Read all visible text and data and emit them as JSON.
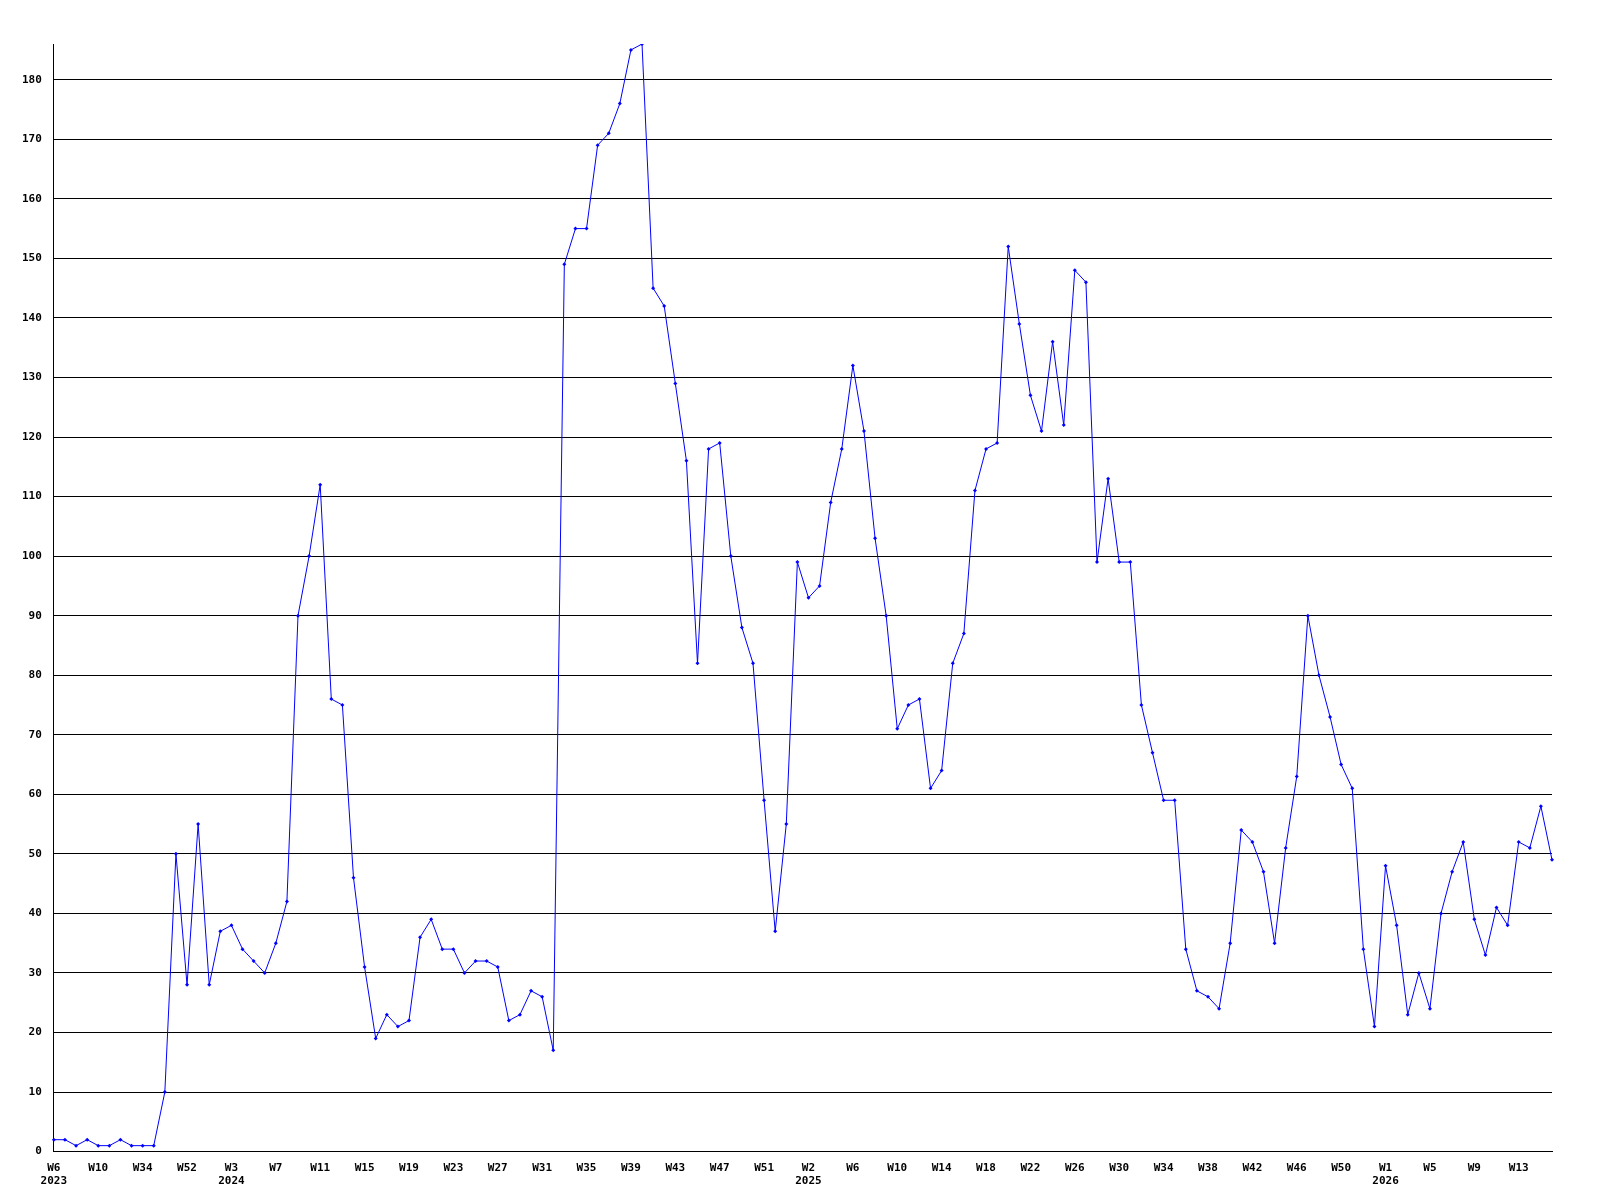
{
  "chart_data": {
    "type": "line",
    "categories": [
      "W6\n2023",
      null,
      null,
      null,
      "W10",
      null,
      null,
      null,
      "W34",
      null,
      null,
      null,
      "W52",
      null,
      null,
      null,
      "W3\n2024",
      null,
      null,
      null,
      "W7",
      null,
      null,
      null,
      "W11",
      null,
      null,
      null,
      "W15",
      null,
      null,
      null,
      "W19",
      null,
      null,
      null,
      "W23",
      null,
      null,
      null,
      "W27",
      null,
      null,
      null,
      "W31",
      null,
      null,
      null,
      "W35",
      null,
      null,
      null,
      "W39",
      null,
      null,
      null,
      "W43",
      null,
      null,
      null,
      "W47",
      null,
      null,
      null,
      "W51",
      null,
      null,
      null,
      "W2\n2025",
      null,
      null,
      null,
      "W6",
      null,
      null,
      null,
      "W10",
      null,
      null,
      null,
      "W14",
      null,
      null,
      null,
      "W18",
      null,
      null,
      null,
      "W22",
      null,
      null,
      null,
      "W26",
      null,
      null,
      null,
      "W30",
      null,
      null,
      null,
      "W34",
      null,
      null,
      null,
      "W38",
      null,
      null,
      null,
      "W42",
      null,
      null,
      null,
      "W46",
      null,
      null,
      null,
      "W50",
      null,
      null,
      null,
      "W1\n2026",
      null,
      null,
      null,
      "W5",
      null,
      null,
      null,
      "W9",
      null,
      null,
      null,
      "W13",
      null,
      null,
      null
    ],
    "series": [
      {
        "color": "#0000ff",
        "values": [
          2,
          2,
          1,
          2,
          1,
          1,
          2,
          1,
          1,
          1,
          10,
          50,
          28,
          55,
          28,
          37,
          38,
          34,
          32,
          30,
          35,
          42,
          90,
          100,
          112,
          76,
          75,
          46,
          31,
          19,
          23,
          21,
          22,
          36,
          39,
          34,
          34,
          30,
          32,
          32,
          31,
          22,
          23,
          27,
          26,
          17,
          149,
          155,
          155,
          169,
          171,
          176,
          185,
          186,
          145,
          142,
          129,
          116,
          82,
          118,
          119,
          100,
          88,
          82,
          59,
          37,
          55,
          99,
          93,
          95,
          109,
          118,
          132,
          121,
          103,
          90,
          71,
          75,
          76,
          61,
          64,
          82,
          87,
          111,
          118,
          119,
          152,
          139,
          127,
          121,
          136,
          122,
          148,
          146,
          99,
          113,
          99,
          99,
          75,
          67,
          59,
          59,
          34,
          27,
          26,
          24,
          35,
          54,
          52,
          47,
          35,
          51,
          63,
          90,
          80,
          73,
          65,
          61,
          34,
          21,
          48,
          38,
          23,
          30,
          24,
          40,
          47,
          52,
          39,
          33,
          41,
          38,
          52,
          51,
          58,
          49
        ]
      }
    ],
    "ylim": [
      0,
      186
    ],
    "yticks": [
      0,
      10,
      20,
      30,
      40,
      50,
      60,
      70,
      80,
      90,
      100,
      110,
      120,
      130,
      140,
      150,
      160,
      170,
      180
    ],
    "grid": "y",
    "legend": false,
    "marker": "diamond",
    "line_style": "solid"
  }
}
